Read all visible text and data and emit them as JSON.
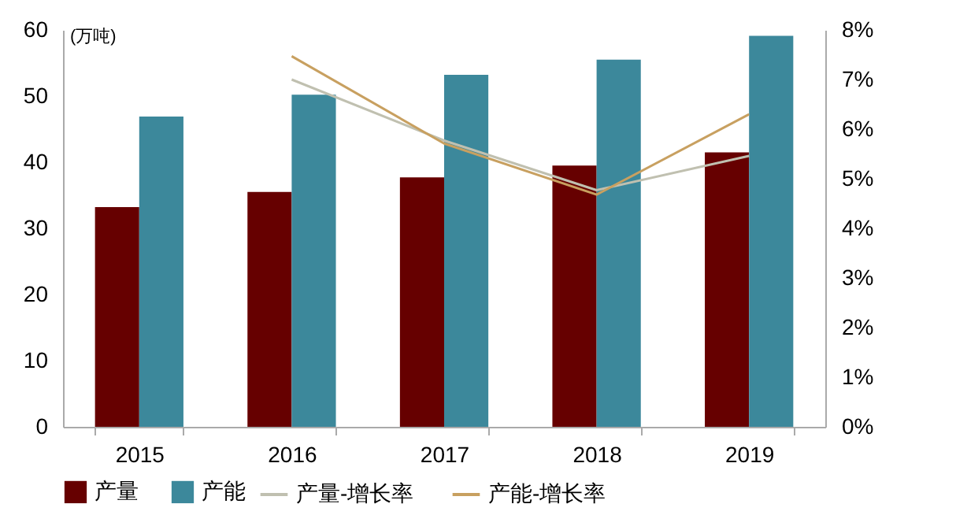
{
  "chart_data": {
    "type": "bar",
    "ylabel": "(万吨)",
    "categories": [
      "2015",
      "2016",
      "2017",
      "2018",
      "2019"
    ],
    "series": [
      {
        "name": "产量",
        "color": "#660000",
        "values": [
          33.2,
          35.5,
          37.7,
          39.5,
          41.5
        ]
      },
      {
        "name": "产能",
        "color": "#3c889b",
        "values": [
          46.9,
          50.2,
          53.2,
          55.5,
          59.1
        ]
      },
      {
        "name": "产量-增长率",
        "type": "line",
        "axis": "y2",
        "color": "#c0c0b0",
        "values": [
          null,
          7.0,
          5.77,
          4.77,
          5.46
        ]
      },
      {
        "name": "产能-增长率",
        "type": "line",
        "axis": "y2",
        "color": "#c8a060",
        "values": [
          null,
          7.47,
          5.71,
          4.68,
          6.3
        ]
      }
    ],
    "ylim": [
      0,
      60
    ],
    "yticks": [
      0,
      10,
      20,
      30,
      40,
      50,
      60
    ],
    "y2lim": [
      0,
      8
    ],
    "y2ticks": [
      {
        "value": 0,
        "label": "0%"
      },
      {
        "value": 1,
        "label": "1%"
      },
      {
        "value": 2,
        "label": "2%"
      },
      {
        "value": 3,
        "label": "3%"
      },
      {
        "value": 4,
        "label": "4%"
      },
      {
        "value": 5,
        "label": "5%"
      },
      {
        "value": 6,
        "label": "6%"
      },
      {
        "value": 7,
        "label": "7%"
      },
      {
        "value": 8,
        "label": "8%"
      }
    ],
    "legend": "bottom",
    "marker": "none",
    "line_style": "solid",
    "grid": false
  }
}
